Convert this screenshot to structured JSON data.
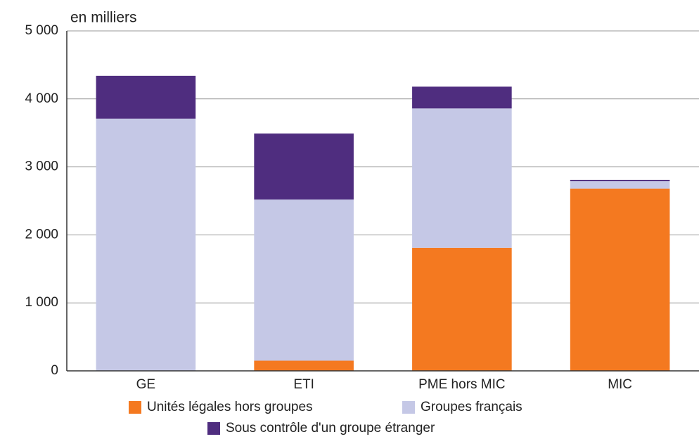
{
  "chart_data": {
    "type": "bar",
    "stacked": true,
    "y_label": "en milliers",
    "categories": [
      "GE",
      "ETI",
      "PME hors MIC",
      "MIC"
    ],
    "series": [
      {
        "name": "Unités légales hors groupes",
        "color": "#f47920",
        "values": [
          0,
          150,
          1810,
          2680
        ]
      },
      {
        "name": "Groupes français",
        "color": "#c5c8e6",
        "values": [
          3710,
          2370,
          2050,
          110
        ]
      },
      {
        "name": "Sous contrôle d'un groupe étranger",
        "color": "#4f2d7f",
        "values": [
          630,
          970,
          320,
          20
        ]
      }
    ],
    "ylim": [
      0,
      5000
    ],
    "yticks": [
      0,
      {
        "value": 1000,
        "label": "1 000"
      },
      {
        "value": 2000,
        "label": "2 000"
      },
      {
        "value": 3000,
        "label": "3 000"
      },
      {
        "value": 4000,
        "label": "4 000"
      },
      {
        "value": 5000,
        "label": "5 000"
      }
    ],
    "grid": true,
    "legend": "bottom"
  }
}
